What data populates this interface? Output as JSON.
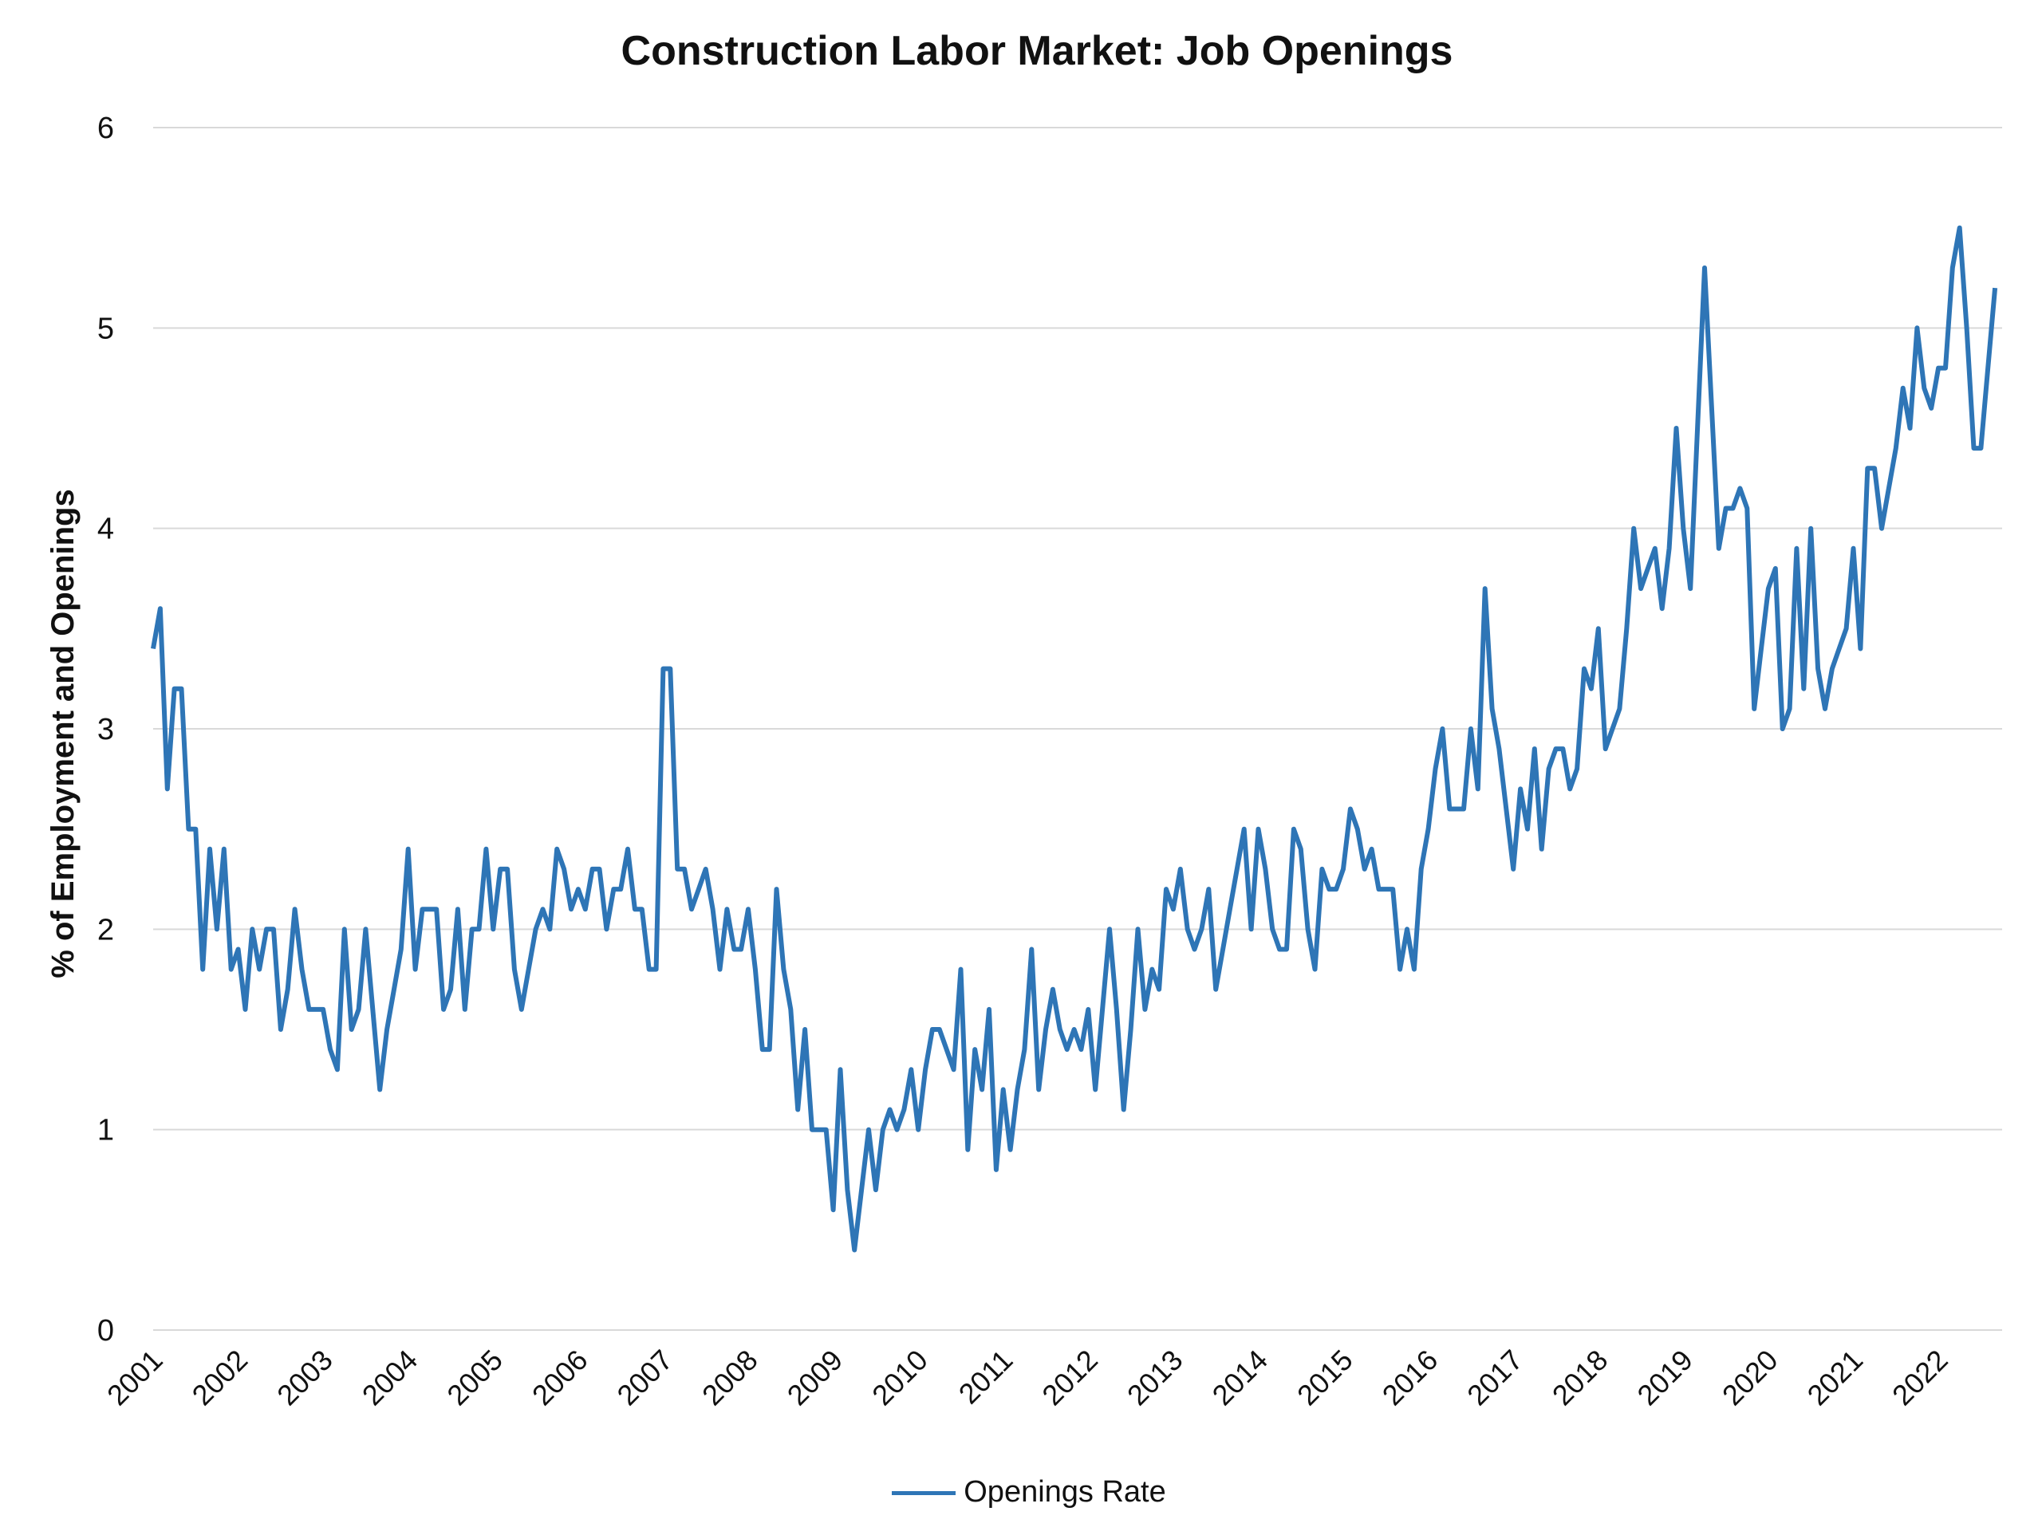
{
  "chart_data": {
    "type": "line",
    "title": "Construction Labor Market: Job Openings",
    "ylabel": "% of Employment and Openings",
    "xlabel": "",
    "ylim": [
      0,
      6
    ],
    "yticks": [
      "0",
      "1",
      "2",
      "3",
      "4",
      "5",
      "6"
    ],
    "xticks": [
      "2001",
      "2002",
      "2003",
      "2004",
      "2005",
      "2006",
      "2007",
      "2008",
      "2009",
      "2010",
      "2011",
      "2012",
      "2013",
      "2014",
      "2015",
      "2016",
      "2017",
      "2018",
      "2019",
      "2020",
      "2021",
      "2022"
    ],
    "x_start": "2001-01",
    "x_frequency": "monthly",
    "grid": "horizontal",
    "legend_position": "bottom",
    "series": [
      {
        "name": "Openings Rate",
        "color": "#2e75b6",
        "values": [
          3.4,
          3.6,
          2.7,
          3.2,
          3.2,
          2.5,
          2.5,
          1.8,
          2.4,
          2.0,
          2.4,
          1.8,
          1.9,
          1.6,
          2.0,
          1.8,
          2.0,
          2.0,
          1.5,
          1.7,
          2.1,
          1.8,
          1.6,
          1.6,
          1.6,
          1.4,
          1.3,
          2.0,
          1.5,
          1.6,
          2.0,
          1.6,
          1.2,
          1.5,
          1.7,
          1.9,
          2.4,
          1.8,
          2.1,
          2.1,
          2.1,
          1.6,
          1.7,
          2.1,
          1.6,
          2.0,
          2.0,
          2.4,
          2.0,
          2.3,
          2.3,
          1.8,
          1.6,
          1.8,
          2.0,
          2.1,
          2.0,
          2.4,
          2.3,
          2.1,
          2.2,
          2.1,
          2.3,
          2.3,
          2.0,
          2.2,
          2.2,
          2.4,
          2.1,
          2.1,
          1.8,
          1.8,
          3.3,
          3.3,
          2.3,
          2.3,
          2.1,
          2.2,
          2.3,
          2.1,
          1.8,
          2.1,
          1.9,
          1.9,
          2.1,
          1.8,
          1.4,
          1.4,
          2.2,
          1.8,
          1.6,
          1.1,
          1.5,
          1.0,
          1.0,
          1.0,
          0.6,
          1.3,
          0.7,
          0.4,
          0.7,
          1.0,
          0.7,
          1.0,
          1.1,
          1.0,
          1.1,
          1.3,
          1.0,
          1.3,
          1.5,
          1.5,
          1.4,
          1.3,
          1.8,
          0.9,
          1.4,
          1.2,
          1.6,
          0.8,
          1.2,
          0.9,
          1.2,
          1.4,
          1.9,
          1.2,
          1.5,
          1.7,
          1.5,
          1.4,
          1.5,
          1.4,
          1.6,
          1.2,
          1.6,
          2.0,
          1.6,
          1.1,
          1.5,
          2.0,
          1.6,
          1.8,
          1.7,
          2.2,
          2.1,
          2.3,
          2.0,
          1.9,
          2.0,
          2.2,
          1.7,
          1.9,
          2.1,
          2.3,
          2.5,
          2.0,
          2.5,
          2.3,
          2.0,
          1.9,
          1.9,
          2.5,
          2.4,
          2.0,
          1.8,
          2.3,
          2.2,
          2.2,
          2.3,
          2.6,
          2.5,
          2.3,
          2.4,
          2.2,
          2.2,
          2.2,
          1.8,
          2.0,
          1.8,
          2.3,
          2.5,
          2.8,
          3.0,
          2.6,
          2.6,
          2.6,
          3.0,
          2.7,
          3.7,
          3.1,
          2.9,
          2.6,
          2.3,
          2.7,
          2.5,
          2.9,
          2.4,
          2.8,
          2.9,
          2.9,
          2.7,
          2.8,
          3.3,
          3.2,
          3.5,
          2.9,
          3.0,
          3.1,
          3.5,
          4.0,
          3.7,
          3.8,
          3.9,
          3.6,
          3.9,
          4.5,
          4.0,
          3.7,
          4.5,
          5.3,
          4.6,
          3.9,
          4.1,
          4.1,
          4.2,
          4.1,
          3.1,
          3.4,
          3.7,
          3.8,
          3.0,
          3.1,
          3.9,
          3.2,
          4.0,
          3.3,
          3.1,
          3.3,
          3.4,
          3.5,
          3.9,
          3.4,
          4.3,
          4.3,
          4.0,
          4.2,
          4.4,
          4.7,
          4.5,
          5.0,
          4.7,
          4.6,
          4.8,
          4.8,
          5.3,
          5.5,
          5.0,
          4.4,
          4.4,
          4.8,
          5.2
        ]
      }
    ]
  }
}
